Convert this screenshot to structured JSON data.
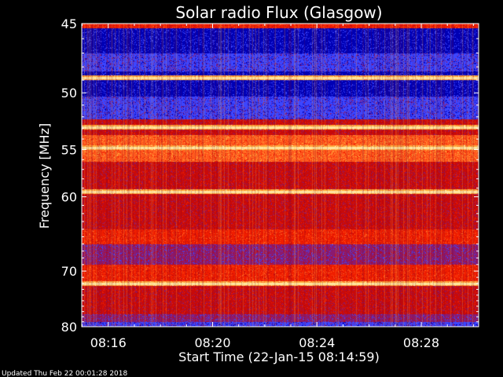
{
  "chart_data": {
    "type": "heatmap",
    "title": "Solar radio Flux (Glasgow)",
    "xlabel": "Start Time (22-Jan-15 08:14:59)",
    "ylabel": "Frequency [MHz]",
    "x_ticks": [
      "08:16",
      "08:20",
      "08:24",
      "08:28"
    ],
    "x_tick_minutes": [
      16,
      20,
      24,
      28
    ],
    "xlim_minutes": [
      14.983,
      30.2
    ],
    "y_ticks": [
      45,
      50,
      55,
      60,
      70,
      80
    ],
    "ylim": [
      45,
      80
    ],
    "y_scale": "reciprocal",
    "colormap": [
      "#0000b4",
      "#3c46ff",
      "#8c1a6e",
      "#c80a0a",
      "#f01e00",
      "#ff5a1e",
      "#ffaa3c",
      "#ffe6a0"
    ],
    "bright_bands_mhz": [
      48.8,
      52.9,
      54.8,
      59.4,
      72.0
    ],
    "grid": false,
    "legend": "none"
  },
  "footer": {
    "updated": "Updated Thu Feb 22 00:01:28 2018"
  }
}
